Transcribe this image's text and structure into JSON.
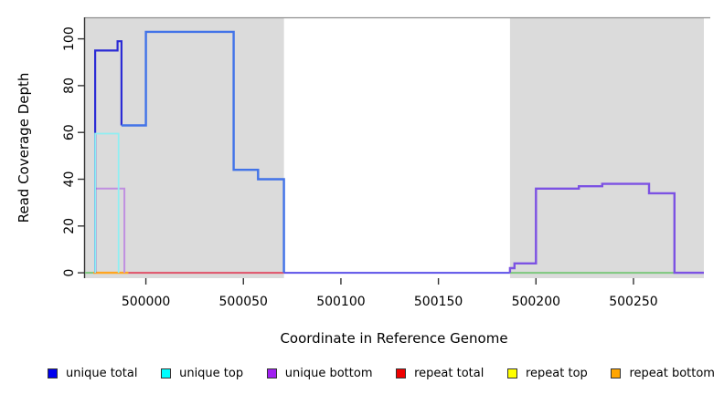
{
  "figure": {
    "kind": "read coverage step plot"
  },
  "chart_data": {
    "type": "line",
    "step": true,
    "title": "",
    "xlabel": "Coordinate in Reference Genome",
    "ylabel": "Read Coverage Depth",
    "xlim": [
      499968.8,
      500286.1
    ],
    "ylim": [
      -2.3,
      109.2
    ],
    "x_ticks": [
      500000,
      500050,
      500100,
      500150,
      500200,
      500250
    ],
    "y_ticks": [
      0,
      20,
      40,
      60,
      80,
      100
    ],
    "grid": false,
    "plot_background": "#FFFFFF",
    "shaded_region_color": "#DBDBDB",
    "shaded_regions": [
      {
        "name": "covered-region-left",
        "x0": 499968.8,
        "x1": 500070.8
      },
      {
        "name": "covered-region-right",
        "x0": 500186.7,
        "x1": 500286.1
      }
    ],
    "axis_color": "#333333",
    "top_border_color": "#8E8E8E",
    "series": [
      {
        "name": "baseline-green-left",
        "color": "#7CC87C",
        "width": 2,
        "points": [
          [
            499968.8,
            0
          ],
          [
            499974,
            0
          ]
        ]
      },
      {
        "name": "repeat-bottom-orange",
        "color": "#FFA520",
        "width": 2.4,
        "points": [
          [
            499973,
            0
          ],
          [
            499991,
            0
          ]
        ]
      },
      {
        "name": "repeat-total-red",
        "color": "#E05068",
        "width": 2,
        "points": [
          [
            499991,
            0
          ],
          [
            500070.8,
            0
          ]
        ]
      },
      {
        "name": "unique-bottom-left-purple",
        "color": "#C08FE0",
        "width": 2,
        "points": [
          [
            499974,
            0
          ],
          [
            499974,
            36
          ],
          [
            499989,
            36
          ],
          [
            499989,
            0
          ]
        ]
      },
      {
        "name": "unique-total-navy",
        "color": "#2B2BD5",
        "width": 2.2,
        "points": [
          [
            499974,
            0
          ],
          [
            499974,
            95
          ],
          [
            499985.5,
            95
          ],
          [
            499985.5,
            99
          ],
          [
            499987.5,
            99
          ],
          [
            499987.5,
            63
          ]
        ]
      },
      {
        "name": "unique-top-cyan",
        "color": "#8FEFF2",
        "width": 1.8,
        "points": [
          [
            499974,
            0
          ],
          [
            499974,
            59.5
          ],
          [
            499986,
            59.5
          ],
          [
            499986,
            0
          ]
        ]
      },
      {
        "name": "unique-total-royal",
        "color": "#4273E8",
        "width": 2.4,
        "points": [
          [
            499987.5,
            63
          ],
          [
            500000,
            63
          ],
          [
            500000,
            103
          ],
          [
            500045,
            103
          ],
          [
            500045,
            44
          ],
          [
            500057.5,
            44
          ],
          [
            500057.5,
            40
          ],
          [
            500070.8,
            40
          ],
          [
            500070.8,
            0
          ]
        ]
      },
      {
        "name": "baseline-mid-violet",
        "color": "#5B51E8",
        "width": 2,
        "points": [
          [
            500070.8,
            0
          ],
          [
            500186.7,
            0
          ]
        ]
      },
      {
        "name": "baseline-green-right",
        "color": "#7CC87C",
        "width": 2,
        "points": [
          [
            500186.7,
            0
          ],
          [
            500271,
            0
          ]
        ]
      },
      {
        "name": "unique-bottom-right-purple",
        "color": "#7C52E3",
        "width": 2.4,
        "points": [
          [
            500186.7,
            0
          ],
          [
            500186.7,
            2
          ],
          [
            500189,
            2
          ],
          [
            500189,
            4
          ],
          [
            500200,
            4
          ],
          [
            500200,
            36
          ],
          [
            500222,
            36
          ],
          [
            500222,
            37
          ],
          [
            500234,
            37
          ],
          [
            500234,
            38
          ],
          [
            500258,
            38
          ],
          [
            500258,
            34
          ],
          [
            500271,
            34
          ],
          [
            500271,
            0
          ],
          [
            500286.1,
            0
          ]
        ]
      }
    ],
    "legend_position": "bottom",
    "legend": [
      {
        "label": "unique total",
        "color": "#0000EE"
      },
      {
        "label": "unique top",
        "color": "#00FFFF"
      },
      {
        "label": "unique bottom",
        "color": "#A020F0"
      },
      {
        "label": "repeat total",
        "color": "#EE0000"
      },
      {
        "label": "repeat top",
        "color": "#FFFF00"
      },
      {
        "label": "repeat bottom",
        "color": "#FFA500"
      }
    ]
  }
}
